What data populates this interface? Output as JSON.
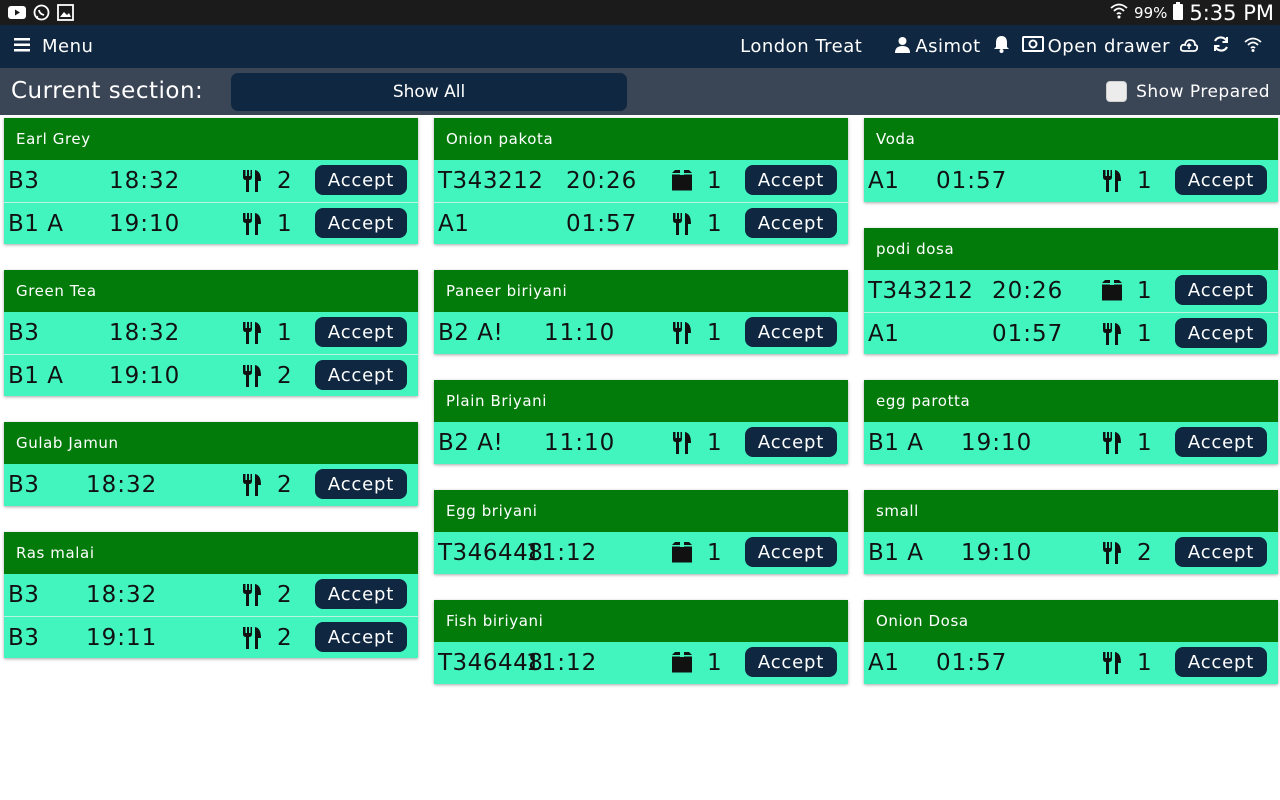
{
  "status_bar": {
    "battery": "99%",
    "time": "5:35 PM",
    "left_icons": [
      "youtube-icon",
      "whatsapp-icon",
      "gallery-icon"
    ]
  },
  "nav": {
    "menu_label": "Menu",
    "store": "London Treat",
    "user": "Asimot",
    "drawer_label": "Open drawer"
  },
  "section": {
    "label": "Current section:",
    "selected": "Show All",
    "show_prepared_label": "Show Prepared",
    "show_prepared_checked": false
  },
  "colors": {
    "header_green": "#037b0b",
    "row_mint": "#42f5bf",
    "navy": "#0f2740",
    "section_bar": "#3a4556"
  },
  "accept_label": "Accept",
  "columns": [
    {
      "cards": [
        {
          "name": "Earl Grey",
          "rows": [
            {
              "table": "B3",
              "time": "18:32",
              "type": "dine-in",
              "qty": "2"
            },
            {
              "table": "B1 A",
              "time": "19:10",
              "type": "dine-in",
              "qty": "1"
            }
          ]
        },
        {
          "name": "Green Tea",
          "rows": [
            {
              "table": "B3",
              "time": "18:32",
              "type": "dine-in",
              "qty": "1"
            },
            {
              "table": "B1 A",
              "time": "19:10",
              "type": "dine-in",
              "qty": "2"
            }
          ]
        },
        {
          "name": "Gulab Jamun",
          "rows": [
            {
              "table": "B3",
              "time": "18:32",
              "type": "dine-in",
              "qty": "2"
            }
          ]
        },
        {
          "name": "Ras malai",
          "rows": [
            {
              "table": "B3",
              "time": "18:32",
              "type": "dine-in",
              "qty": "2"
            },
            {
              "table": "B3",
              "time": "19:11",
              "type": "dine-in",
              "qty": "2"
            }
          ]
        }
      ]
    },
    {
      "cards": [
        {
          "name": "Onion pakota",
          "rows": [
            {
              "table": "T343212",
              "time": "20:26",
              "type": "takeaway",
              "qty": "1"
            },
            {
              "table": "A1",
              "time": "01:57",
              "type": "dine-in",
              "qty": "1"
            }
          ]
        },
        {
          "name": "Paneer biriyani",
          "rows": [
            {
              "table": "B2 A!",
              "time": "11:10",
              "type": "dine-in",
              "qty": "1"
            }
          ]
        },
        {
          "name": "Plain Briyani",
          "rows": [
            {
              "table": "B2 A!",
              "time": "11:10",
              "type": "dine-in",
              "qty": "1"
            }
          ]
        },
        {
          "name": "Egg briyani",
          "rows": [
            {
              "table": "T346448",
              "time": "11:12",
              "type": "takeaway",
              "qty": "1"
            }
          ]
        },
        {
          "name": "Fish biriyani",
          "rows": [
            {
              "table": "T346448",
              "time": "11:12",
              "type": "takeaway",
              "qty": "1"
            }
          ]
        }
      ]
    },
    {
      "cards": [
        {
          "name": "Voda",
          "rows": [
            {
              "table": "A1",
              "time": "01:57",
              "type": "dine-in",
              "qty": "1"
            }
          ]
        },
        {
          "name": "podi dosa",
          "rows": [
            {
              "table": "T343212",
              "time": "20:26",
              "type": "takeaway",
              "qty": "1"
            },
            {
              "table": "A1",
              "time": "01:57",
              "type": "dine-in",
              "qty": "1"
            }
          ]
        },
        {
          "name": "egg parotta",
          "rows": [
            {
              "table": "B1 A",
              "time": "19:10",
              "type": "dine-in",
              "qty": "1"
            }
          ]
        },
        {
          "name": "small",
          "rows": [
            {
              "table": "B1 A",
              "time": "19:10",
              "type": "dine-in",
              "qty": "2"
            }
          ]
        },
        {
          "name": "Onion Dosa",
          "rows": [
            {
              "table": "A1",
              "time": "01:57",
              "type": "dine-in",
              "qty": "1"
            }
          ]
        }
      ]
    }
  ]
}
